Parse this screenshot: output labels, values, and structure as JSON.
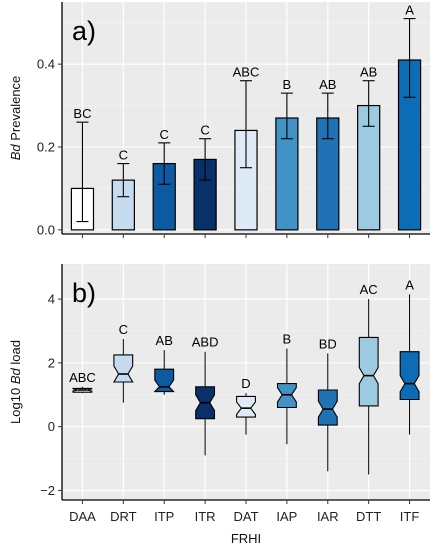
{
  "figure": {
    "xlabel": "FRHI",
    "categories": [
      "DAA",
      "DRT",
      "ITP",
      "ITR",
      "DAT",
      "IAP",
      "IAR",
      "DTT",
      "ITF"
    ],
    "fill_colors": [
      "#ffffff",
      "#c6dbef",
      "#0b5aa2",
      "#08306b",
      "#deebf7",
      "#4292c6",
      "#2171b5",
      "#9ecae1",
      "#0c6cb5"
    ]
  },
  "chart_data": [
    {
      "type": "bar",
      "panel_label": "a)",
      "ylabel_italic": "Bd",
      "ylabel_rest": " Prevalence",
      "ylim": [
        -0.01,
        0.55
      ],
      "yticks": [
        "0.0",
        "0.2",
        "0.4"
      ],
      "ytick_values": [
        0.0,
        0.2,
        0.4
      ],
      "grid": true,
      "categories": [
        "DAA",
        "DRT",
        "ITP",
        "ITR",
        "DAT",
        "IAP",
        "IAR",
        "DTT",
        "ITF"
      ],
      "values": [
        0.1,
        0.12,
        0.16,
        0.17,
        0.24,
        0.27,
        0.27,
        0.3,
        0.41
      ],
      "err_low": [
        0.02,
        0.08,
        0.11,
        0.12,
        0.15,
        0.22,
        0.22,
        0.25,
        0.32
      ],
      "err_high": [
        0.26,
        0.16,
        0.21,
        0.22,
        0.36,
        0.33,
        0.33,
        0.36,
        0.51
      ],
      "letters": [
        "BC",
        "C",
        "C",
        "C",
        "ABC",
        "B",
        "AB",
        "AB",
        "A"
      ]
    },
    {
      "type": "boxplot",
      "panel_label": "b)",
      "ylabel_prefix": "Log10 ",
      "ylabel_italic": "Bd",
      "ylabel_suffix": " load",
      "ylim": [
        -2.3,
        5.1
      ],
      "yticks": [
        "−2",
        "0",
        "2",
        "4"
      ],
      "ytick_values": [
        -2,
        0,
        2,
        4
      ],
      "grid": true,
      "categories": [
        "DAA",
        "DRT",
        "ITP",
        "ITR",
        "DAT",
        "IAP",
        "IAR",
        "DTT",
        "ITF"
      ],
      "whisker_low": [
        1.05,
        0.75,
        1.0,
        -0.9,
        -0.25,
        -0.55,
        -1.4,
        -1.5,
        -0.25
      ],
      "q1": [
        1.08,
        1.4,
        1.1,
        0.25,
        0.3,
        0.6,
        0.05,
        0.65,
        0.85
      ],
      "median": [
        1.15,
        1.65,
        1.25,
        0.75,
        0.58,
        1.0,
        0.55,
        1.6,
        1.35
      ],
      "q3": [
        1.2,
        2.25,
        1.8,
        1.25,
        0.95,
        1.35,
        1.15,
        2.8,
        2.35
      ],
      "whisker_high": [
        1.25,
        2.75,
        2.4,
        2.35,
        1.05,
        2.45,
        2.3,
        4.0,
        4.15
      ],
      "letters": [
        "ABC",
        "C",
        "AB",
        "ABD",
        "D",
        "B",
        "BD",
        "AC",
        "A"
      ]
    }
  ]
}
